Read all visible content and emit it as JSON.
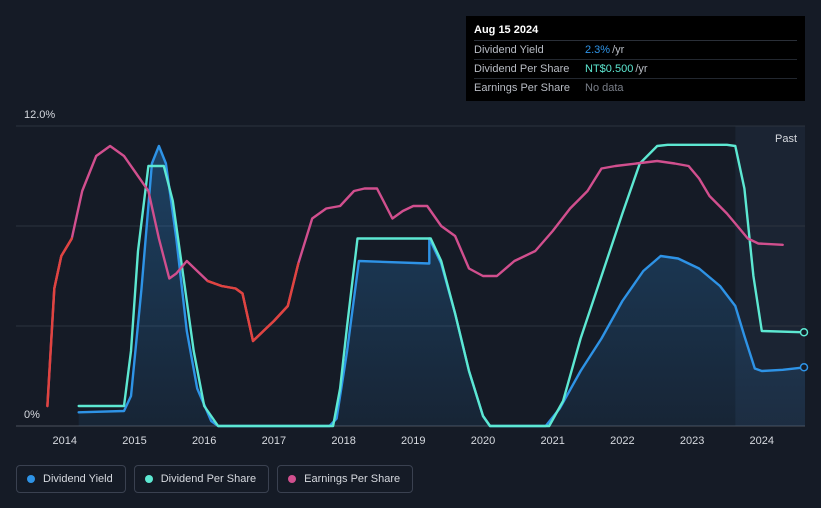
{
  "tooltip": {
    "date": "Aug 15 2024",
    "rows": [
      {
        "label": "Dividend Yield",
        "value": "2.3%",
        "unit": "/yr",
        "color": "#2e93e6"
      },
      {
        "label": "Dividend Per Share",
        "value": "NT$0.500",
        "unit": "/yr",
        "color": "#5de8d2"
      },
      {
        "label": "Earnings Per Share",
        "value": "No data",
        "unit": "",
        "color": "#7a7f89"
      }
    ]
  },
  "past_label": "Past",
  "legend": [
    {
      "label": "Dividend Yield",
      "color": "#2e93e6"
    },
    {
      "label": "Dividend Per Share",
      "color": "#5de8d2"
    },
    {
      "label": "Earnings Per Share",
      "color": "#d14f8e"
    }
  ],
  "chart_data": {
    "type": "line",
    "title": "",
    "xlabel": "",
    "ylabel": "",
    "ylim": [
      0,
      12
    ],
    "y_tick_labels": [
      "0%",
      "12.0%"
    ],
    "x_ticks": [
      2014,
      2015,
      2016,
      2017,
      2018,
      2019,
      2020,
      2021,
      2022,
      2023,
      2024
    ],
    "xlim": [
      2013.3,
      2024.62
    ],
    "grid": true,
    "past_region_start": 2023.62,
    "series": [
      {
        "name": "Dividend Yield",
        "color": "#2e93e6",
        "fill": true,
        "points": [
          [
            2014.2,
            0.55
          ],
          [
            2014.85,
            0.6
          ],
          [
            2014.95,
            1.2
          ],
          [
            2015.1,
            5.5
          ],
          [
            2015.25,
            10.5
          ],
          [
            2015.35,
            11.2
          ],
          [
            2015.45,
            10.5
          ],
          [
            2015.6,
            7.5
          ],
          [
            2015.75,
            3.8
          ],
          [
            2015.9,
            1.5
          ],
          [
            2016.1,
            0.2
          ],
          [
            2016.2,
            0
          ],
          [
            2017.8,
            0
          ],
          [
            2017.9,
            0.3
          ],
          [
            2018.05,
            3.0
          ],
          [
            2018.22,
            6.6
          ],
          [
            2019.23,
            6.5
          ],
          [
            2019.23,
            7.5
          ],
          [
            2019.4,
            6.5
          ],
          [
            2019.6,
            4.5
          ],
          [
            2019.8,
            2.2
          ],
          [
            2020.0,
            0.4
          ],
          [
            2020.1,
            0
          ],
          [
            2020.9,
            0
          ],
          [
            2021.1,
            0.7
          ],
          [
            2021.4,
            2.2
          ],
          [
            2021.7,
            3.5
          ],
          [
            2022.0,
            5.0
          ],
          [
            2022.3,
            6.2
          ],
          [
            2022.55,
            6.8
          ],
          [
            2022.8,
            6.7
          ],
          [
            2023.1,
            6.3
          ],
          [
            2023.4,
            5.6
          ],
          [
            2023.62,
            4.8
          ],
          [
            2023.75,
            3.6
          ],
          [
            2023.9,
            2.3
          ],
          [
            2024.0,
            2.2
          ],
          [
            2024.3,
            2.25
          ],
          [
            2024.62,
            2.35
          ]
        ]
      },
      {
        "name": "Dividend Per Share",
        "color": "#5de8d2",
        "fill": false,
        "points": [
          [
            2014.2,
            0.8
          ],
          [
            2014.85,
            0.8
          ],
          [
            2014.95,
            3.0
          ],
          [
            2015.05,
            7.0
          ],
          [
            2015.2,
            10.4
          ],
          [
            2015.42,
            10.4
          ],
          [
            2015.55,
            9.0
          ],
          [
            2015.7,
            6.0
          ],
          [
            2015.85,
            3.0
          ],
          [
            2016.0,
            0.8
          ],
          [
            2016.2,
            0
          ],
          [
            2017.85,
            0
          ],
          [
            2017.95,
            1.5
          ],
          [
            2018.05,
            4.0
          ],
          [
            2018.2,
            7.5
          ],
          [
            2019.25,
            7.5
          ],
          [
            2019.4,
            6.6
          ],
          [
            2019.6,
            4.5
          ],
          [
            2019.8,
            2.2
          ],
          [
            2020.0,
            0.4
          ],
          [
            2020.1,
            0
          ],
          [
            2020.95,
            0
          ],
          [
            2021.15,
            1.0
          ],
          [
            2021.4,
            3.5
          ],
          [
            2021.7,
            6.0
          ],
          [
            2022.0,
            8.5
          ],
          [
            2022.25,
            10.5
          ],
          [
            2022.5,
            11.2
          ],
          [
            2022.65,
            11.25
          ],
          [
            2023.5,
            11.25
          ],
          [
            2023.62,
            11.2
          ],
          [
            2023.75,
            9.5
          ],
          [
            2023.88,
            6.0
          ],
          [
            2024.0,
            3.8
          ],
          [
            2024.62,
            3.75
          ]
        ]
      },
      {
        "name": "Earnings Per Share",
        "color": "#d14f8e",
        "fill": false,
        "points": [
          [
            2013.75,
            0.8
          ],
          [
            2013.85,
            5.5
          ],
          [
            2013.95,
            6.8
          ],
          [
            2014.1,
            7.5
          ],
          [
            2014.25,
            9.4
          ],
          [
            2014.45,
            10.8
          ],
          [
            2014.65,
            11.2
          ],
          [
            2014.85,
            10.8
          ],
          [
            2015.0,
            10.2
          ],
          [
            2015.2,
            9.4
          ],
          [
            2015.35,
            7.5
          ],
          [
            2015.5,
            5.9
          ],
          [
            2015.6,
            6.1
          ],
          [
            2015.75,
            6.6
          ],
          [
            2015.9,
            6.2
          ],
          [
            2016.05,
            5.8
          ],
          [
            2016.25,
            5.6
          ],
          [
            2016.45,
            5.5
          ],
          [
            2016.55,
            5.3
          ],
          [
            2016.7,
            3.4
          ],
          [
            2016.85,
            3.8
          ],
          [
            2017.0,
            4.2
          ],
          [
            2017.2,
            4.8
          ],
          [
            2017.35,
            6.5
          ],
          [
            2017.55,
            8.3
          ],
          [
            2017.75,
            8.7
          ],
          [
            2017.95,
            8.8
          ],
          [
            2018.15,
            9.4
          ],
          [
            2018.3,
            9.5
          ],
          [
            2018.48,
            9.5
          ],
          [
            2018.7,
            8.3
          ],
          [
            2018.85,
            8.6
          ],
          [
            2019.0,
            8.8
          ],
          [
            2019.2,
            8.8
          ],
          [
            2019.4,
            8.0
          ],
          [
            2019.6,
            7.6
          ],
          [
            2019.8,
            6.3
          ],
          [
            2020.0,
            6.0
          ],
          [
            2020.2,
            6.0
          ],
          [
            2020.45,
            6.6
          ],
          [
            2020.75,
            7.0
          ],
          [
            2021.0,
            7.8
          ],
          [
            2021.25,
            8.7
          ],
          [
            2021.5,
            9.4
          ],
          [
            2021.7,
            10.3
          ],
          [
            2021.9,
            10.4
          ],
          [
            2022.2,
            10.5
          ],
          [
            2022.5,
            10.6
          ],
          [
            2022.75,
            10.5
          ],
          [
            2022.95,
            10.4
          ],
          [
            2023.1,
            9.9
          ],
          [
            2023.25,
            9.2
          ],
          [
            2023.5,
            8.5
          ],
          [
            2023.62,
            8.1
          ],
          [
            2023.8,
            7.5
          ],
          [
            2023.95,
            7.3
          ],
          [
            2024.3,
            7.25
          ]
        ]
      }
    ]
  }
}
